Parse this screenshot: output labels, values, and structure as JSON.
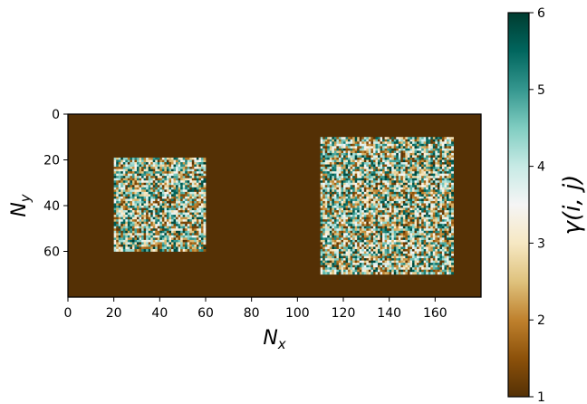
{
  "chart_data": {
    "type": "heatmap",
    "grid": {
      "nx": 180,
      "ny": 80
    },
    "background_value": 1,
    "regions": [
      {
        "x_range": [
          20,
          60
        ],
        "y_range": [
          19,
          60
        ],
        "value_range": [
          1,
          6
        ],
        "fill": "random"
      },
      {
        "x_range": [
          110,
          168
        ],
        "y_range": [
          10,
          70
        ],
        "value_range": [
          1,
          6
        ],
        "fill": "random"
      }
    ],
    "xlabel": {
      "base": "N",
      "sub": "x"
    },
    "ylabel": {
      "base": "N",
      "sub": "y"
    },
    "xlim": [
      0,
      180
    ],
    "ylim": [
      80,
      0
    ],
    "x_ticks": [
      0,
      20,
      40,
      60,
      80,
      100,
      120,
      140,
      160
    ],
    "y_ticks": [
      0,
      20,
      40,
      60
    ],
    "colorbar": {
      "label": "γ(i, j)",
      "range": [
        1,
        6
      ],
      "ticks": [
        1,
        2,
        3,
        4,
        5,
        6
      ],
      "colormap": "BrBG",
      "colors": [
        "#543005",
        "#8c510a",
        "#bf812d",
        "#dfc27d",
        "#f6e8c3",
        "#f5f5f5",
        "#c7eae5",
        "#80cdc1",
        "#35978f",
        "#01665e",
        "#003c30"
      ]
    }
  }
}
